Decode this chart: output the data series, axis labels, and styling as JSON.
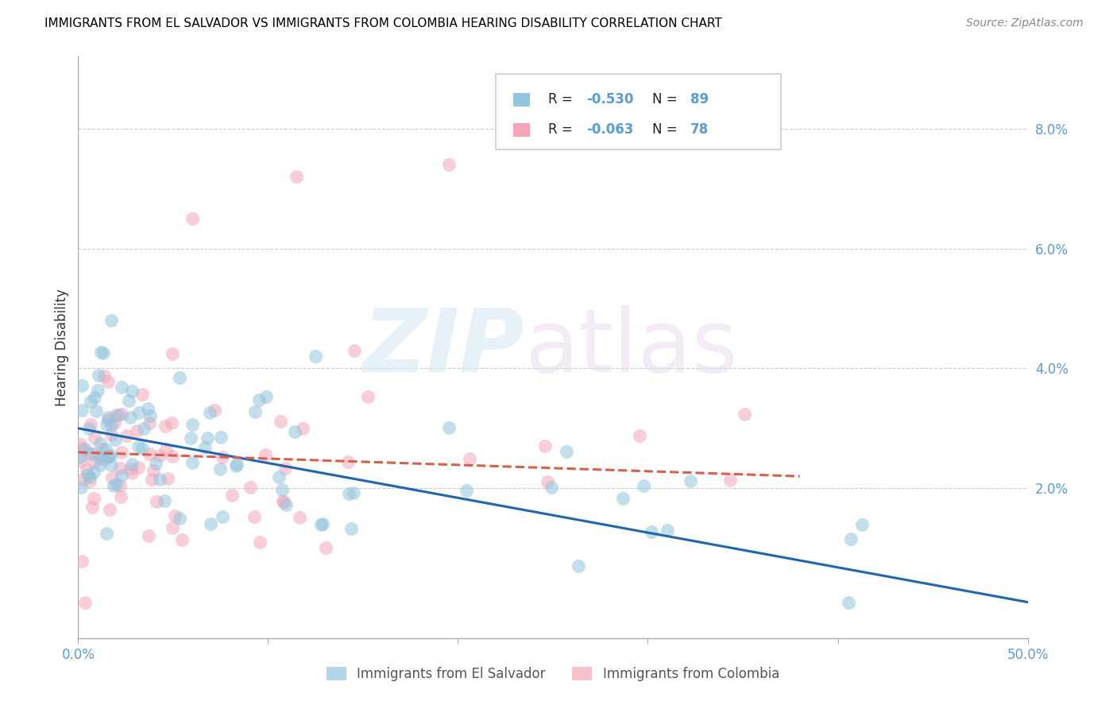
{
  "title": "IMMIGRANTS FROM EL SALVADOR VS IMMIGRANTS FROM COLOMBIA HEARING DISABILITY CORRELATION CHART",
  "source": "Source: ZipAtlas.com",
  "ylabel": "Hearing Disability",
  "right_yticks": [
    "8.0%",
    "6.0%",
    "4.0%",
    "2.0%"
  ],
  "right_ytick_vals": [
    0.08,
    0.06,
    0.04,
    0.02
  ],
  "xlim": [
    0.0,
    0.5
  ],
  "ylim": [
    -0.005,
    0.092
  ],
  "legend_r1": "R = -0.530",
  "legend_n1": "N = 89",
  "legend_r2": "R = -0.063",
  "legend_n2": "N = 78",
  "color_blue": "#92c5de",
  "color_pink": "#f4a6b8",
  "color_blue_line": "#2166ac",
  "color_pink_line": "#d6604d",
  "background_color": "#ffffff",
  "grid_color": "#cccccc",
  "title_color": "#000000",
  "axis_label_color": "#5b9bd5",
  "es_line_x0": 0.0,
  "es_line_y0": 0.03,
  "es_line_x1": 0.5,
  "es_line_y1": 0.001,
  "co_line_x0": 0.0,
  "co_line_y0": 0.026,
  "co_line_x1": 0.38,
  "co_line_y1": 0.022
}
